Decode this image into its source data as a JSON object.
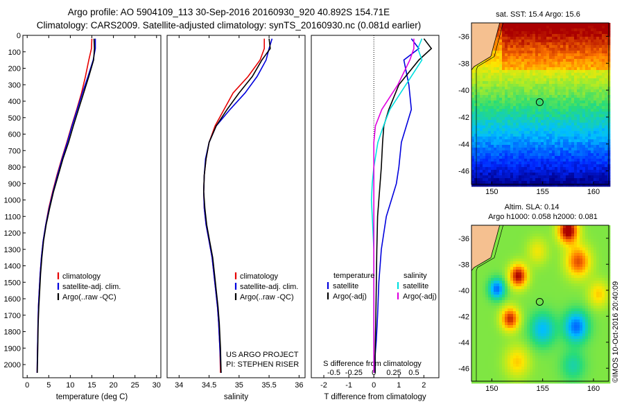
{
  "header": {
    "line1": "Argo profile: AO 5904109_113 30-Sep-2016 20160930_920 40.892S 154.71E",
    "line2": "Climatology: CARS2009. Satellite-adjusted climatology: synTS_20160930.nc (0.081d earlier)"
  },
  "credit": "©IMOS 10-Oct-2016 20:40:09",
  "colors": {
    "climatology": "#e60000",
    "satellite": "#0000dd",
    "argo": "#000000",
    "sat_salinity": "#00e0e0",
    "argo_salinity_diff": "#e000e0"
  },
  "chart_data": [
    {
      "type": "line",
      "panel": "temperature",
      "xlabel": "temperature (deg C)",
      "ylabel": "",
      "xlim": [
        -1,
        31
      ],
      "ylim": [
        2080,
        0
      ],
      "xticks": [
        0,
        5,
        10,
        15,
        20,
        25,
        30
      ],
      "yticks": [
        0,
        100,
        200,
        300,
        400,
        500,
        600,
        700,
        800,
        900,
        1000,
        1100,
        1200,
        1300,
        1400,
        1500,
        1600,
        1700,
        1800,
        1900,
        2000
      ],
      "legend": [
        "climatology",
        "satellite-adj. clim.",
        "Argo(..raw -QC)"
      ],
      "series": [
        {
          "name": "climatology",
          "x": [
            15.0,
            14.9,
            14.3,
            13.5,
            12.6,
            11.5,
            10.3,
            9.2,
            8.0,
            6.9,
            5.9,
            5.0,
            4.3,
            3.7,
            3.3,
            3.0,
            2.8,
            2.6,
            2.5,
            2.4,
            2.3
          ],
          "y": [
            20,
            80,
            150,
            250,
            350,
            450,
            550,
            650,
            750,
            850,
            950,
            1050,
            1150,
            1250,
            1350,
            1450,
            1550,
            1650,
            1750,
            1900,
            2050
          ]
        },
        {
          "name": "satellite-adj. clim.",
          "x": [
            15.8,
            15.8,
            15.3,
            14.1,
            12.8,
            11.6,
            10.4,
            9.3,
            8.1,
            7.0,
            6.0,
            5.1,
            4.3,
            3.7,
            3.3,
            3.0,
            2.8,
            2.6,
            2.5,
            2.4,
            2.3
          ],
          "y": [
            20,
            80,
            150,
            250,
            350,
            450,
            550,
            650,
            750,
            850,
            950,
            1050,
            1150,
            1250,
            1350,
            1450,
            1550,
            1650,
            1750,
            1900,
            2050
          ]
        },
        {
          "name": "Argo(..raw -QC)",
          "x": [
            15.5,
            15.6,
            15.4,
            14.3,
            13.1,
            11.9,
            10.7,
            9.6,
            8.3,
            7.2,
            6.1,
            5.2,
            4.4,
            3.8,
            3.4,
            3.1,
            2.9,
            2.7,
            2.55,
            2.45,
            2.35
          ],
          "y": [
            20,
            80,
            150,
            250,
            350,
            450,
            550,
            650,
            750,
            850,
            950,
            1050,
            1150,
            1250,
            1350,
            1450,
            1550,
            1650,
            1750,
            1900,
            2050
          ]
        }
      ]
    },
    {
      "type": "line",
      "panel": "salinity",
      "xlabel": "salinity",
      "xlim": [
        33.8,
        36.1
      ],
      "ylim": [
        2080,
        0
      ],
      "xticks": [
        34,
        34.5,
        35,
        35.5,
        36
      ],
      "legend": [
        "climatology",
        "satellite-adj. clim.",
        "Argo(..raw -QC)"
      ],
      "annotation": [
        "US ARGO PROJECT",
        "PI: STEPHEN RISER"
      ],
      "series": [
        {
          "name": "climatology",
          "x": [
            35.42,
            35.42,
            35.35,
            35.15,
            34.9,
            34.75,
            34.6,
            34.5,
            34.45,
            34.42,
            34.41,
            34.42,
            34.45,
            34.5,
            34.55,
            34.58,
            34.61,
            34.64,
            34.66,
            34.68,
            34.69
          ],
          "y": [
            20,
            80,
            150,
            250,
            350,
            450,
            550,
            650,
            750,
            850,
            950,
            1050,
            1150,
            1250,
            1350,
            1450,
            1550,
            1650,
            1750,
            1900,
            2050
          ]
        },
        {
          "name": "satellite-adj. clim.",
          "x": [
            35.55,
            35.5,
            35.45,
            35.3,
            35.1,
            34.85,
            34.62,
            34.5,
            34.44,
            34.42,
            34.41,
            34.42,
            34.45,
            34.5,
            34.55,
            34.58,
            34.61,
            34.64,
            34.66,
            34.68,
            34.7
          ],
          "y": [
            20,
            80,
            150,
            250,
            350,
            450,
            550,
            650,
            750,
            850,
            950,
            1050,
            1150,
            1250,
            1350,
            1450,
            1550,
            1650,
            1750,
            1900,
            2050
          ]
        },
        {
          "name": "Argo(..raw -QC)",
          "x": [
            35.5,
            35.52,
            35.38,
            35.22,
            35.0,
            34.8,
            34.62,
            34.5,
            34.45,
            34.42,
            34.41,
            34.43,
            34.46,
            34.51,
            34.56,
            34.59,
            34.62,
            34.65,
            34.67,
            34.69,
            34.7
          ],
          "y": [
            20,
            80,
            150,
            250,
            350,
            450,
            550,
            650,
            750,
            850,
            950,
            1050,
            1150,
            1250,
            1350,
            1450,
            1550,
            1650,
            1750,
            1900,
            2050
          ]
        }
      ]
    },
    {
      "type": "line",
      "panel": "difference",
      "xlabel": "T difference from climatology",
      "xlabel2": "S difference from climatology",
      "xlim": [
        -2.5,
        2.6
      ],
      "xticks": [
        -2,
        -1,
        0,
        1,
        2
      ],
      "xticks2": [
        -0.5,
        -0.25,
        0,
        0.25,
        0.5
      ],
      "ylim": [
        2080,
        0
      ],
      "legend": {
        "temperature_heading": "temperature",
        "salinity_heading": "salinity",
        "items": [
          "satellite",
          "Argo(-adj)",
          "satellite",
          "Argo(-adj)"
        ]
      },
      "series": [
        {
          "name": "temperature satellite",
          "x": [
            1.5,
            1.8,
            1.2,
            1.4,
            1.5,
            1.3,
            1.1,
            1.0,
            0.9,
            0.7,
            0.5,
            0.3,
            0.2,
            0.15,
            0.1,
            0.05,
            0.05
          ],
          "y": [
            20,
            80,
            150,
            300,
            450,
            550,
            650,
            800,
            900,
            1000,
            1100,
            1300,
            1500,
            1700,
            1850,
            1950,
            2050
          ]
        },
        {
          "name": "temperature Argo(-adj)",
          "x": [
            2.0,
            2.3,
            1.8,
            1.0,
            0.6,
            0.4,
            0.35,
            0.3,
            0.25,
            0.2,
            0.15,
            0.12,
            0.1,
            0.08,
            0.06,
            0.05,
            0.05
          ],
          "y": [
            20,
            80,
            150,
            300,
            450,
            550,
            650,
            800,
            900,
            1000,
            1100,
            1300,
            1500,
            1700,
            1850,
            1950,
            2050
          ]
        },
        {
          "name": "salinity satellite",
          "x": [
            0.6,
            0.55,
            0.6,
            0.4,
            0.2,
            0.12,
            0.05,
            0.0,
            -0.02,
            -0.03,
            -0.02,
            0.0,
            0.0,
            0.0,
            0.0,
            0.0,
            0.0
          ],
          "y": [
            20,
            80,
            150,
            300,
            450,
            550,
            650,
            800,
            900,
            1000,
            1100,
            1300,
            1500,
            1700,
            1850,
            1950,
            2050
          ]
        },
        {
          "name": "salinity Argo(-adj)",
          "x": [
            0.5,
            0.5,
            0.45,
            0.3,
            0.1,
            0.02,
            0.0,
            0.0,
            0.0,
            0.0,
            0.0,
            0.0,
            0.0,
            0.0,
            0.0,
            0.0,
            0.0
          ],
          "y": [
            20,
            80,
            150,
            300,
            450,
            550,
            650,
            800,
            900,
            1000,
            1100,
            1300,
            1500,
            1700,
            1850,
            1950,
            2050
          ]
        }
      ]
    },
    {
      "type": "heatmap",
      "panel": "sst_map",
      "title": "sat. SST: 15.4  Argo: 15.6",
      "xlim": [
        148,
        161.5
      ],
      "ylim": [
        -47,
        -35
      ],
      "xticks": [
        150,
        155,
        160
      ],
      "yticks": [
        -36,
        -38,
        -40,
        -42,
        -44,
        -46
      ],
      "marker": {
        "lon": 154.71,
        "lat": -40.892
      }
    },
    {
      "type": "heatmap",
      "panel": "sla_map",
      "title_line1": "Altim. SLA: 0.14",
      "title_line2": "Argo h1000: 0.058  h2000: 0.081",
      "xlim": [
        148,
        161.5
      ],
      "ylim": [
        -47,
        -35
      ],
      "xticks": [
        150,
        155,
        160
      ],
      "yticks": [
        -36,
        -38,
        -40,
        -42,
        -44,
        -46
      ],
      "marker": {
        "lon": 154.71,
        "lat": -40.892
      }
    }
  ]
}
